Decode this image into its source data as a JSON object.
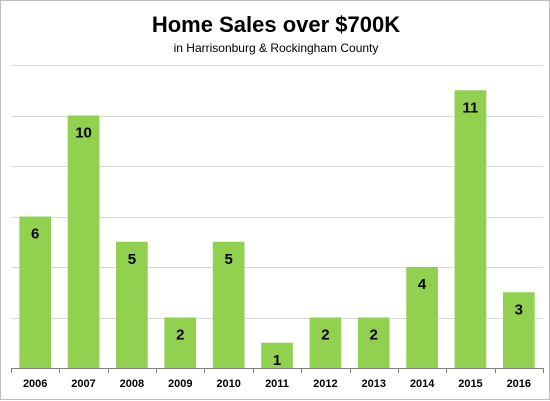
{
  "chart_data": {
    "type": "bar",
    "title": "Home Sales over $700K",
    "subtitle": "in Harrisonburg & Rockingham County",
    "categories": [
      "2006",
      "2007",
      "2008",
      "2009",
      "2010",
      "2011",
      "2012",
      "2013",
      "2014",
      "2015",
      "2016"
    ],
    "values": [
      6,
      10,
      5,
      2,
      5,
      1,
      2,
      2,
      4,
      11,
      3
    ],
    "data_labels": [
      "6",
      "10",
      "5",
      "2",
      "5",
      "1",
      "2",
      "2",
      "4",
      "11",
      "3"
    ],
    "xlabel": "",
    "ylabel": "",
    "ylim": [
      0,
      12
    ],
    "ytick_step": 2,
    "grid": true,
    "y_tick_labels_shown": false,
    "legend": "none",
    "bar_color": "#92D050",
    "grid_color": "#d9d9d9",
    "axis_color": "#808080"
  }
}
